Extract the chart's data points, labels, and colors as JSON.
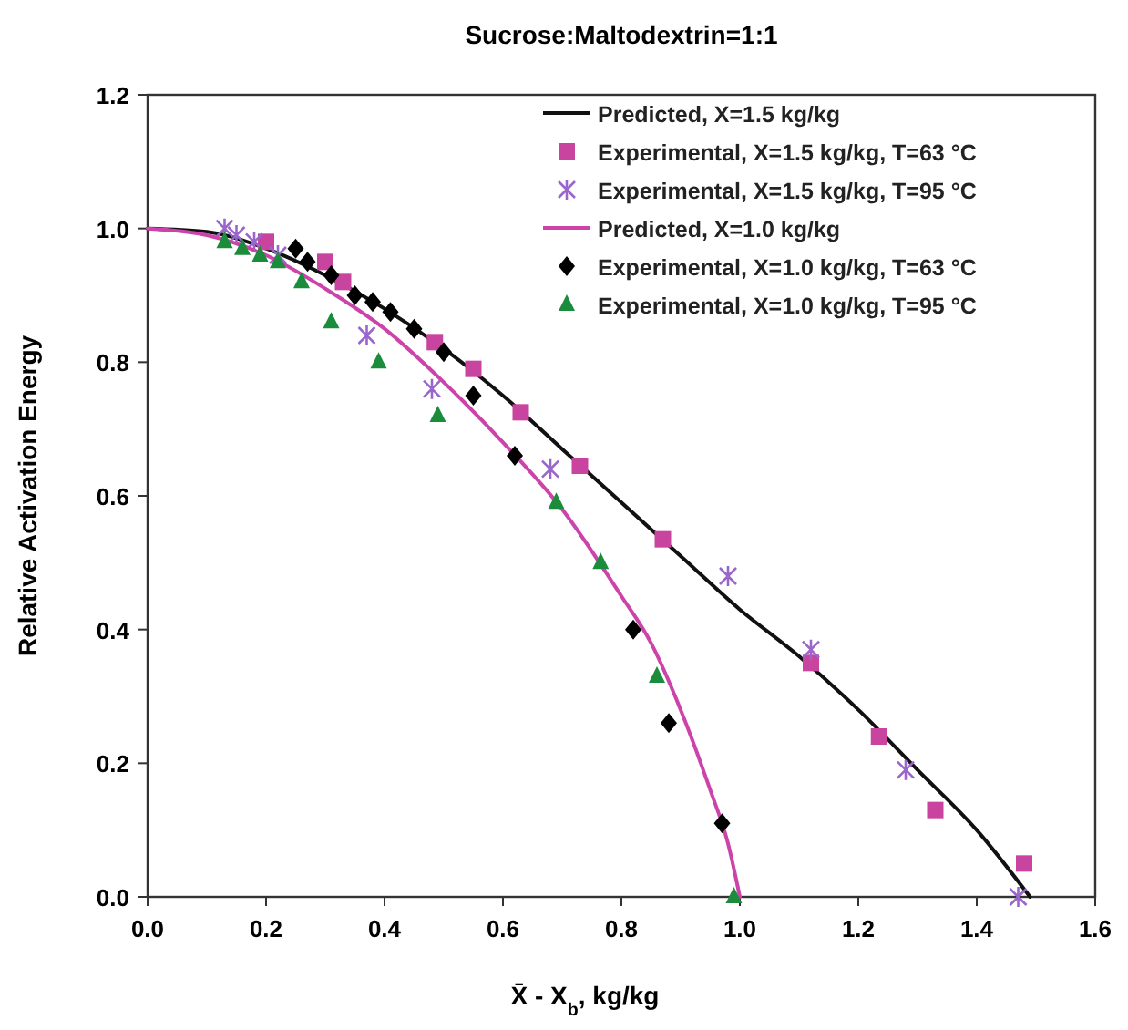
{
  "chart_data": {
    "type": "scatter",
    "title": "Sucrose:Maltodextrin=1:1",
    "xlabel": "X̄ - X$_{b}$, kg/kg",
    "ylabel": "Relative Activation Energy",
    "xlim": [
      0,
      1.6
    ],
    "ylim": [
      0,
      1.2
    ],
    "xticks": [
      {
        "value": 0,
        "label": "0.0"
      },
      0.2,
      0.4,
      0.6,
      0.8,
      {
        "value": 1,
        "label": "1.0"
      },
      1.2,
      1.4,
      1.6
    ],
    "yticks": [
      {
        "value": 0,
        "label": "0.0"
      },
      0.2,
      0.4,
      0.6,
      0.8,
      {
        "value": 1,
        "label": "1.0"
      },
      1.2
    ],
    "legend": "top right",
    "grid": false,
    "series": [
      {
        "name": "Predicted, X=1.5 kg/kg",
        "type": "line",
        "marker": "none",
        "color": "#111111",
        "x": [
          0,
          0.1,
          0.2,
          0.3,
          0.4,
          0.5,
          0.6,
          0.7,
          0.8,
          0.9,
          1.0,
          1.1,
          1.2,
          1.3,
          1.4,
          1.49
        ],
        "values": [
          1,
          0.995,
          0.97,
          0.93,
          0.88,
          0.82,
          0.75,
          0.67,
          0.59,
          0.51,
          0.43,
          0.36,
          0.28,
          0.19,
          0.1,
          0
        ]
      },
      {
        "name": "Experimental, X=1.5 kg/kg, T=63 °C",
        "marker": "square",
        "color": "#c8449e",
        "x": [
          0.2,
          0.3,
          0.33,
          0.485,
          0.55,
          0.63,
          0.73,
          0.87,
          1.12,
          1.235,
          1.33,
          1.48
        ],
        "values": [
          0.98,
          0.95,
          0.92,
          0.83,
          0.79,
          0.725,
          0.645,
          0.535,
          0.35,
          0.24,
          0.13,
          0.05
        ]
      },
      {
        "name": "Experimental, X=1.5 kg/kg, T=95 °C",
        "marker": "cross",
        "color": "#9966cc",
        "x": [
          0.13,
          0.15,
          0.18,
          0.22,
          0.37,
          0.48,
          0.68,
          0.98,
          1.12,
          1.28,
          1.47
        ],
        "values": [
          1.0,
          0.99,
          0.98,
          0.96,
          0.84,
          0.76,
          0.64,
          0.48,
          0.37,
          0.19,
          0
        ]
      },
      {
        "name": "Predicted, X=1.0 kg/kg",
        "type": "line",
        "marker": "none",
        "color": "#cc44aa",
        "x": [
          0,
          0.1,
          0.2,
          0.3,
          0.4,
          0.5,
          0.6,
          0.7,
          0.8,
          0.85,
          0.9,
          0.95,
          0.98,
          1.0
        ],
        "values": [
          1,
          0.99,
          0.96,
          0.91,
          0.85,
          0.77,
          0.68,
          0.58,
          0.45,
          0.38,
          0.28,
          0.16,
          0.08,
          0
        ]
      },
      {
        "name": "Experimental, X=1.0 kg/kg, T=63 °C",
        "marker": "diamond",
        "color": "#000000",
        "x": [
          0.25,
          0.27,
          0.31,
          0.35,
          0.38,
          0.41,
          0.45,
          0.5,
          0.55,
          0.62,
          0.82,
          0.88,
          0.97
        ],
        "values": [
          0.97,
          0.95,
          0.93,
          0.9,
          0.89,
          0.875,
          0.85,
          0.815,
          0.75,
          0.66,
          0.4,
          0.26,
          0.11
        ]
      },
      {
        "name": "Experimental, X=1.0 kg/kg, T=95 °C",
        "marker": "triangle",
        "color": "#1a8c3c",
        "x": [
          0.13,
          0.16,
          0.19,
          0.22,
          0.26,
          0.31,
          0.39,
          0.49,
          0.69,
          0.765,
          0.86,
          0.99
        ],
        "values": [
          0.98,
          0.97,
          0.96,
          0.95,
          0.92,
          0.86,
          0.8,
          0.72,
          0.59,
          0.5,
          0.33,
          0
        ]
      }
    ]
  }
}
